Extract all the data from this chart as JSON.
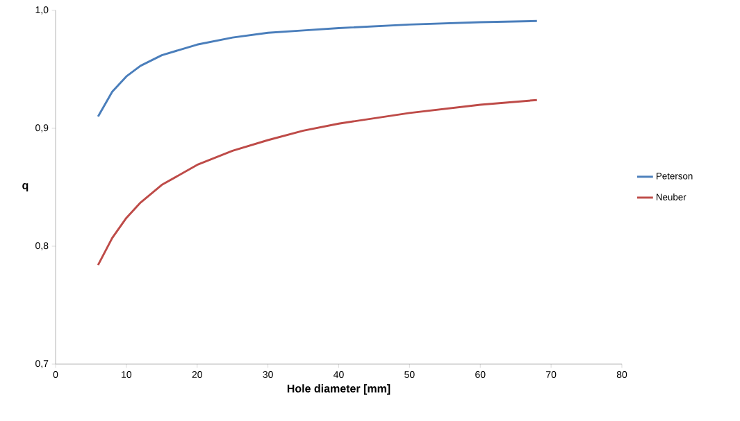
{
  "chart_data": {
    "type": "line",
    "xlabel": "Hole diameter [mm]",
    "ylabel": "q",
    "xlim": [
      0,
      80
    ],
    "xticks": [
      0,
      10,
      20,
      30,
      40,
      50,
      60,
      70,
      80
    ],
    "ylim": [
      0.7,
      1.0
    ],
    "yticks": [
      {
        "value": 0.7,
        "label": "0,7"
      },
      {
        "value": 0.8,
        "label": "0,8"
      },
      {
        "value": 0.9,
        "label": "0,9"
      },
      {
        "value": 1.0,
        "label": "1,0"
      }
    ],
    "legend": "right",
    "marker": "none",
    "line_style": "solid",
    "series": [
      {
        "name": "Peterson",
        "color": "#4a7ebb",
        "x": [
          6,
          8,
          10,
          12,
          15,
          20,
          25,
          30,
          35,
          40,
          50,
          60,
          68
        ],
        "values": [
          0.91,
          0.931,
          0.944,
          0.953,
          0.962,
          0.971,
          0.977,
          0.981,
          0.983,
          0.985,
          0.988,
          0.99,
          0.991
        ]
      },
      {
        "name": "Neuber",
        "color": "#be4b48",
        "x": [
          6,
          8,
          10,
          12,
          15,
          20,
          25,
          30,
          35,
          40,
          50,
          60,
          68
        ],
        "values": [
          0.784,
          0.807,
          0.824,
          0.837,
          0.852,
          0.869,
          0.881,
          0.89,
          0.898,
          0.904,
          0.913,
          0.92,
          0.924
        ]
      }
    ]
  }
}
